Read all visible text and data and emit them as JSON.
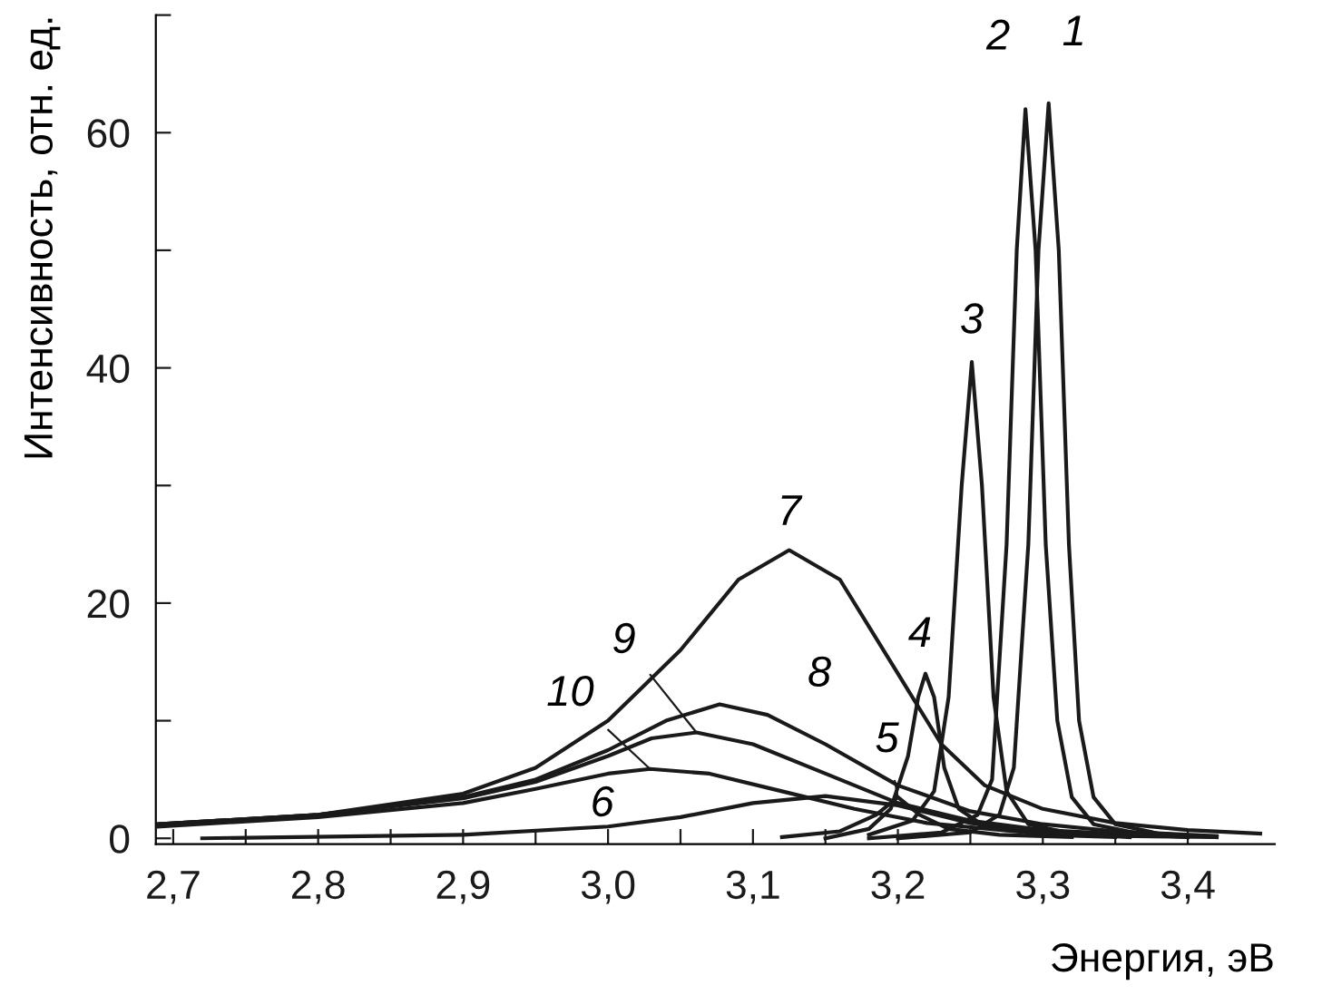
{
  "chart_data": {
    "type": "line",
    "xlabel": "Энергия, эВ",
    "ylabel": "Интенсивность, отн. ед.",
    "xlim": [
      2.688,
      3.46
    ],
    "ylim": [
      -0.5,
      70
    ],
    "xticks": [
      {
        "value": 2.7,
        "label": "2,7"
      },
      {
        "value": 2.75,
        "label": null
      },
      {
        "value": 2.8,
        "label": "2,8"
      },
      {
        "value": 2.85,
        "label": null
      },
      {
        "value": 2.9,
        "label": "2,9"
      },
      {
        "value": 2.95,
        "label": null
      },
      {
        "value": 3.0,
        "label": "3,0"
      },
      {
        "value": 3.05,
        "label": null
      },
      {
        "value": 3.1,
        "label": "3,1"
      },
      {
        "value": 3.15,
        "label": null
      },
      {
        "value": 3.2,
        "label": "3,2"
      },
      {
        "value": 3.25,
        "label": null
      },
      {
        "value": 3.3,
        "label": "3,3"
      },
      {
        "value": 3.35,
        "label": null
      },
      {
        "value": 3.4,
        "label": "3,4"
      }
    ],
    "yticks": [
      0,
      {
        "value": 10,
        "label": null
      },
      20,
      {
        "value": 30,
        "label": null
      },
      40,
      {
        "value": 50,
        "label": null
      },
      60,
      {
        "value": 70,
        "label": null
      }
    ],
    "grid": false,
    "legend": false,
    "marker": "none",
    "line_style": "solid",
    "series": [
      {
        "name": "1",
        "color": "#1a1a1a",
        "x": [
          3.2,
          3.25,
          3.27,
          3.28,
          3.29,
          3.297,
          3.304,
          3.311,
          3.318,
          3.325,
          3.335,
          3.35,
          3.38,
          3.42
        ],
        "values": [
          0,
          0.5,
          2,
          6,
          25,
          50,
          62.5,
          50,
          25,
          10,
          3.5,
          1.2,
          0.4,
          0.1
        ]
      },
      {
        "name": "2",
        "color": "#1a1a1a",
        "x": [
          3.18,
          3.23,
          3.255,
          3.265,
          3.275,
          3.282,
          3.288,
          3.295,
          3.302,
          3.31,
          3.32,
          3.335,
          3.37,
          3.4
        ],
        "values": [
          0,
          0.5,
          2,
          5,
          25,
          50,
          62,
          50,
          25,
          10,
          3.5,
          1.2,
          0.3,
          0.1
        ]
      },
      {
        "name": "3",
        "color": "#1a1a1a",
        "x": [
          3.18,
          3.21,
          3.225,
          3.235,
          3.244,
          3.251,
          3.258,
          3.266,
          3.275,
          3.29,
          3.32,
          3.36
        ],
        "values": [
          0.3,
          1.5,
          4,
          12,
          30,
          40.5,
          30,
          12,
          4,
          1.2,
          0.4,
          0.1
        ]
      },
      {
        "name": "4",
        "color": "#1a1a1a",
        "x": [
          3.15,
          3.18,
          3.195,
          3.207,
          3.214,
          3.219,
          3.225,
          3.232,
          3.242,
          3.26,
          3.3,
          3.35
        ],
        "values": [
          0,
          0.8,
          2.5,
          7,
          12,
          14,
          12,
          6,
          2.5,
          1,
          0.3,
          0.1
        ]
      },
      {
        "name": "5",
        "color": "#1a1a1a",
        "x": [
          3.12,
          3.16,
          3.185,
          3.2,
          3.215,
          3.235,
          3.27,
          3.32
        ],
        "values": [
          0.1,
          0.6,
          2,
          3.5,
          2,
          0.8,
          0.3,
          0.1
        ]
      },
      {
        "name": "6",
        "color": "#1a1a1a",
        "x": [
          2.72,
          2.9,
          3.0,
          3.05,
          3.1,
          3.15,
          3.2,
          3.25,
          3.3,
          3.35,
          3.42
        ],
        "values": [
          0,
          0.3,
          1.0,
          1.8,
          3.0,
          3.6,
          2.8,
          1.3,
          0.5,
          0.2,
          0.1
        ]
      },
      {
        "name": "7",
        "color": "#1a1a1a",
        "x": [
          2.69,
          2.8,
          2.9,
          2.95,
          3.0,
          3.05,
          3.09,
          3.125,
          3.16,
          3.2,
          3.23,
          3.26,
          3.3,
          3.35,
          3.4,
          3.45
        ],
        "values": [
          1.2,
          2.0,
          3.8,
          6,
          10,
          16,
          22,
          24.5,
          22,
          14,
          8,
          4.5,
          2.5,
          1.3,
          0.7,
          0.4
        ]
      },
      {
        "name": "8",
        "color": "#1a1a1a",
        "x": [
          2.69,
          2.8,
          2.9,
          2.95,
          3.0,
          3.04,
          3.077,
          3.11,
          3.15,
          3.2,
          3.25,
          3.3,
          3.35,
          3.42
        ],
        "values": [
          1.2,
          2.0,
          3.5,
          5,
          7.5,
          10,
          11.4,
          10.5,
          8,
          4.5,
          2.3,
          1.2,
          0.6,
          0.2
        ]
      },
      {
        "name": "9",
        "color": "#1a1a1a",
        "x": [
          2.69,
          2.8,
          2.9,
          2.95,
          3.0,
          3.03,
          3.061,
          3.1,
          3.15,
          3.2,
          3.25,
          3.3,
          3.38
        ],
        "values": [
          1.2,
          2.0,
          3.4,
          4.8,
          7,
          8.5,
          9,
          8,
          5.5,
          3,
          1.5,
          0.7,
          0.2
        ]
      },
      {
        "name": "10",
        "color": "#1a1a1a",
        "x": [
          2.69,
          2.8,
          2.9,
          2.95,
          3.0,
          3.029,
          3.07,
          3.12,
          3.17,
          3.22,
          3.28,
          3.35
        ],
        "values": [
          1.0,
          1.8,
          3.0,
          4.2,
          5.5,
          5.9,
          5.5,
          4,
          2.5,
          1.3,
          0.6,
          0.2
        ]
      }
    ]
  }
}
